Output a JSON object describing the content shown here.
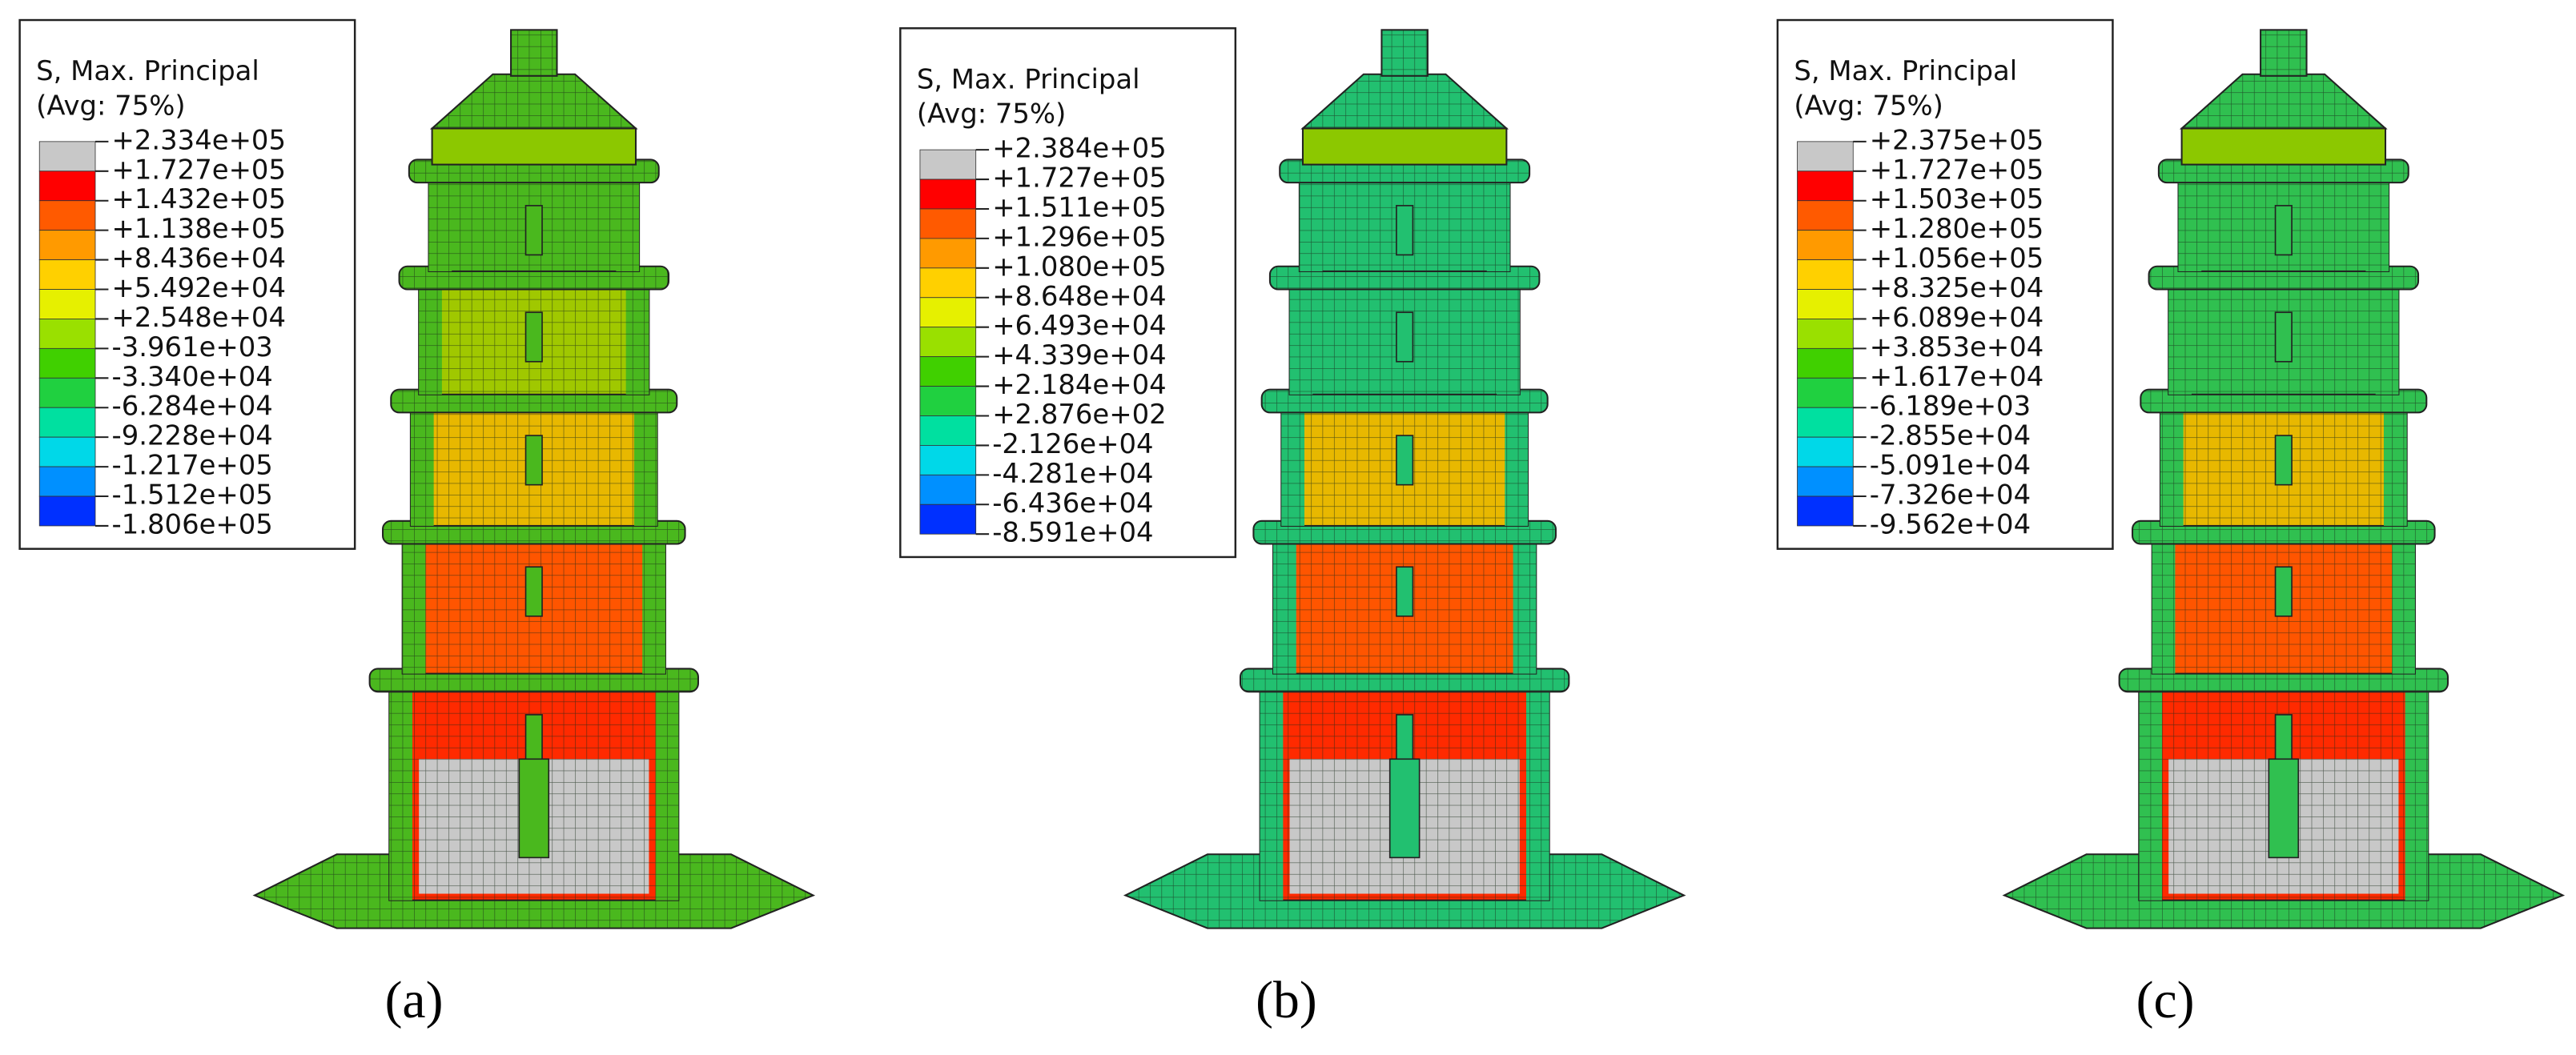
{
  "panels": [
    {
      "label": "(a)",
      "legend": {
        "title": [
          "S, Max. Principal",
          "(Avg: 75%)"
        ],
        "labels": [
          "+2.334e+05",
          "+1.727e+05",
          "+1.432e+05",
          "+1.138e+05",
          "+8.436e+04",
          "+5.492e+04",
          "+2.548e+04",
          "-3.961e+03",
          "-3.340e+04",
          "-6.284e+04",
          "-9.228e+04",
          "-1.217e+05",
          "-1.512e+05",
          "-1.806e+05"
        ]
      }
    },
    {
      "label": "(b)",
      "legend": {
        "title": [
          "S, Max. Principal",
          "(Avg: 75%)"
        ],
        "labels": [
          "+2.384e+05",
          "+1.727e+05",
          "+1.511e+05",
          "+1.296e+05",
          "+1.080e+05",
          "+8.648e+04",
          "+6.493e+04",
          "+4.339e+04",
          "+2.184e+04",
          "+2.876e+02",
          "-2.126e+04",
          "-4.281e+04",
          "-6.436e+04",
          "-8.591e+04"
        ]
      }
    },
    {
      "label": "(c)",
      "legend": {
        "title": [
          "S, Max. Principal",
          "(Avg: 75%)"
        ],
        "labels": [
          "+2.375e+05",
          "+1.727e+05",
          "+1.503e+05",
          "+1.280e+05",
          "+1.056e+05",
          "+8.325e+04",
          "+6.089e+04",
          "+3.853e+04",
          "+1.617e+04",
          "-6.189e+03",
          "-2.855e+04",
          "-5.091e+04",
          "-7.326e+04",
          "-9.562e+04"
        ]
      }
    }
  ]
}
